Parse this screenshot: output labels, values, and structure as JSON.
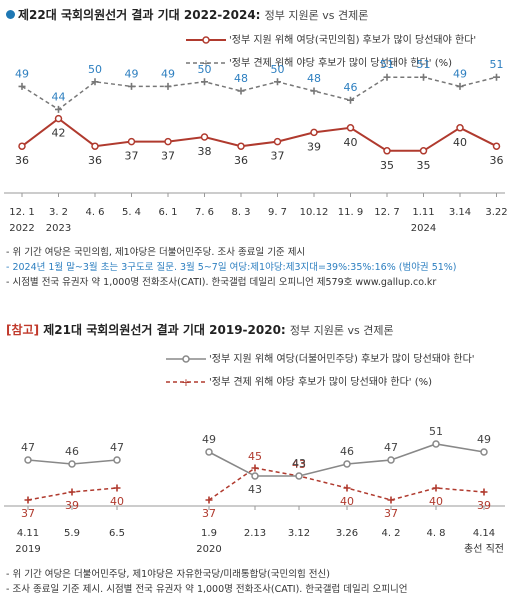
{
  "chart_data": [
    {
      "type": "line",
      "title": "제22대 국회의원선거 결과 기대 2022-2024:",
      "subtitle": "정부 지원론 vs 견제론",
      "categories": [
        "12. 1",
        "3. 2",
        "4. 6",
        "5. 4",
        "6. 1",
        "7. 6",
        "8. 3",
        "9. 7",
        "10.12",
        "11. 9",
        "12. 7",
        "1.11",
        "3.14",
        "3.22"
      ],
      "year_labels": [
        {
          "index": 0,
          "label": "2022"
        },
        {
          "index": 1,
          "label": "2023"
        },
        {
          "index": 11,
          "label": "2024"
        }
      ],
      "series": [
        {
          "name": "'정부 지원 위해 여당(국민의힘) 후보가 많이 당선돼야 한다'",
          "color": "#b03a2e",
          "style": "solid",
          "values": [
            36,
            42,
            36,
            37,
            37,
            38,
            36,
            37,
            39,
            40,
            35,
            35,
            40,
            36
          ]
        },
        {
          "name": "'정부 견제 위해 야당 후보가 많이 당선돼야 한다' (%)",
          "color": "#777777",
          "style": "dashed",
          "values": [
            49,
            44,
            50,
            49,
            49,
            50,
            48,
            50,
            48,
            46,
            51,
            51,
            49,
            51
          ]
        }
      ],
      "ylim": [
        30,
        56
      ]
    },
    {
      "type": "line",
      "title_prefix": "[참고]",
      "title": "제21대 국회의원선거 결과 기대 2019-2020:",
      "subtitle": "정부 지원론 vs 견제론",
      "categories": [
        "4.11",
        "5.9",
        "6.5",
        "1.9",
        "2.13",
        "3.12",
        "3.26",
        "4. 2",
        "4. 8",
        "4.14"
      ],
      "year_labels": [
        {
          "index": 0,
          "label": "2019"
        },
        {
          "index": 3,
          "label": "2020"
        },
        {
          "index": 9,
          "label": "총선 직전"
        }
      ],
      "segments": [
        [
          0,
          2
        ],
        [
          3,
          9
        ]
      ],
      "series": [
        {
          "name": "'정부 지원 위해 여당(더불어민주당) 후보가 많이 당선돼야 한다'",
          "color": "#888888",
          "style": "solid",
          "values": [
            47,
            46,
            47,
            49,
            43,
            43,
            46,
            47,
            51,
            49
          ]
        },
        {
          "name": "'정부 견제 위해 야당 후보가 많이 당선돼야 한다' (%)",
          "color": "#b03a2e",
          "style": "dashed",
          "values": [
            37,
            39,
            40,
            37,
            45,
            43,
            40,
            37,
            40,
            39
          ]
        }
      ],
      "ylim": [
        33,
        54
      ]
    }
  ],
  "notes1": [
    "- 위 기간 여당은 국민의힘, 제1야당은 더불어민주당. 조사 종료일 기준 제시",
    "- 2024년 1월 말~3월 초는 3구도로 질문. 3월 5~7일 여당:제1야당:제3지대=39%:35%:16% (범야권 51%)",
    "- 시점별 전국 유권자 약 1,000명 전화조사(CATI). 한국갤럽 데일리 오피니언 제579호 www.gallup.co.kr"
  ],
  "notes2": [
    "- 위 기간 여당은 더불어민주당, 제1야당은 자유한국당/미래통합당(국민의힘 전신)",
    "- 조사 종료일 기준 제시. 시점별 전국 유권자 약 1,000명 전화조사(CATI). 한국갤럽 데일리 오피니언"
  ],
  "colors": {
    "accent_blue": "#1f78b4",
    "value_blue": "#2d7fc0",
    "ruling_red": "#b03a2e",
    "gray": "#777777"
  }
}
